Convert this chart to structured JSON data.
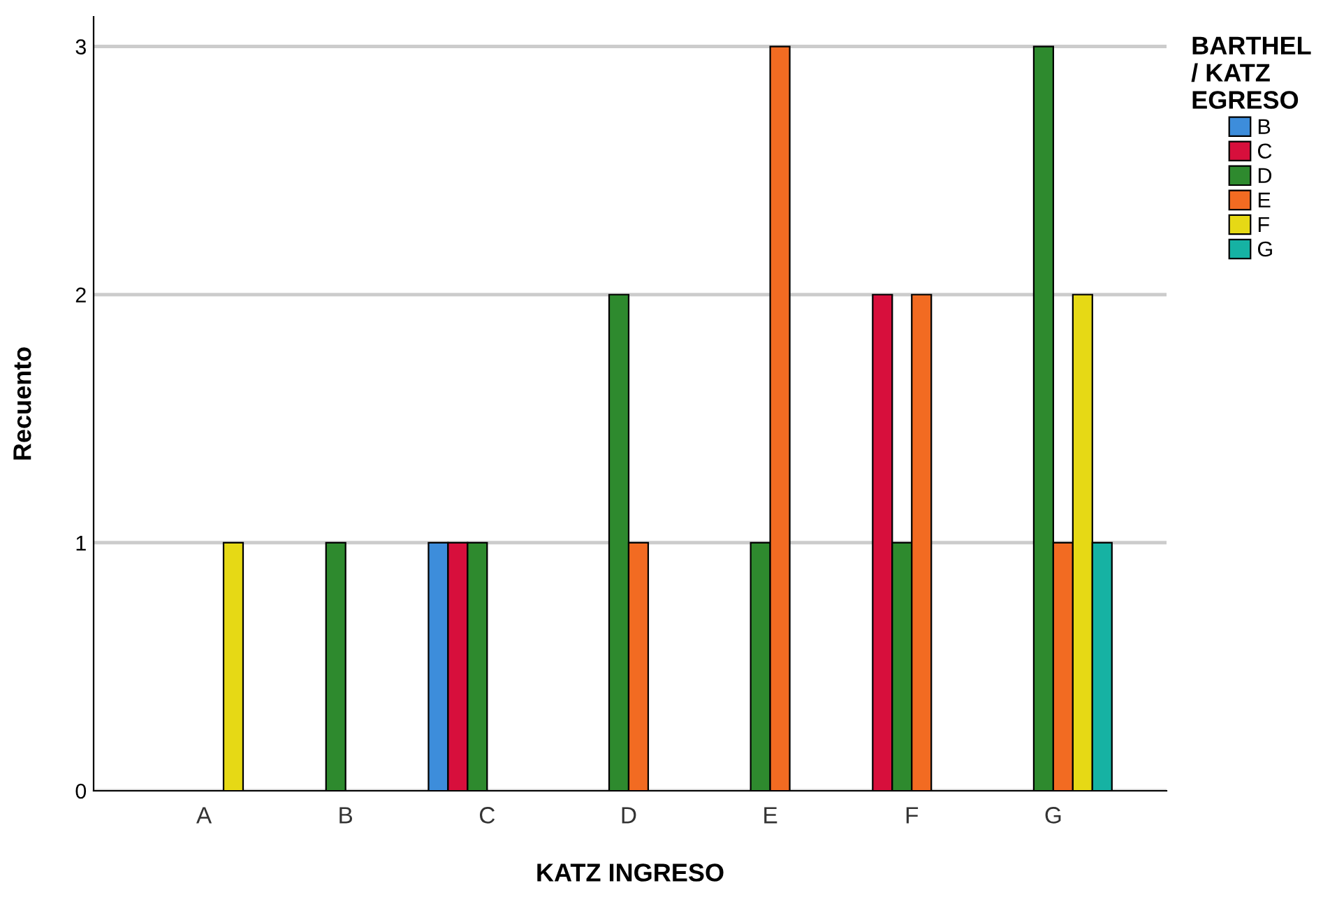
{
  "chart_data": {
    "type": "bar",
    "xlabel": "KATZ INGRESO",
    "ylabel": "Recuento",
    "legend_title": "BARTHEL\n/ KATZ\nEGRESO",
    "categories": [
      "A",
      "B",
      "C",
      "D",
      "E",
      "F",
      "G"
    ],
    "series": [
      {
        "name": "B",
        "color": "#3d8ddb",
        "values": [
          null,
          null,
          1,
          null,
          null,
          null,
          null
        ]
      },
      {
        "name": "C",
        "color": "#d70f3c",
        "values": [
          null,
          null,
          1,
          null,
          null,
          2,
          null
        ]
      },
      {
        "name": "D",
        "color": "#2e8a2e",
        "values": [
          null,
          1,
          1,
          2,
          1,
          1,
          3
        ]
      },
      {
        "name": "E",
        "color": "#f26b22",
        "values": [
          null,
          null,
          null,
          1,
          3,
          2,
          1
        ]
      },
      {
        "name": "F",
        "color": "#e6d915",
        "values": [
          1,
          null,
          null,
          null,
          null,
          null,
          2
        ]
      },
      {
        "name": "G",
        "color": "#16b2a3",
        "values": [
          null,
          null,
          null,
          null,
          null,
          null,
          1
        ]
      }
    ],
    "ylim": [
      0,
      3.12
    ],
    "yticks": [
      0,
      1,
      2,
      3
    ],
    "grid": "y",
    "legend": "right"
  }
}
